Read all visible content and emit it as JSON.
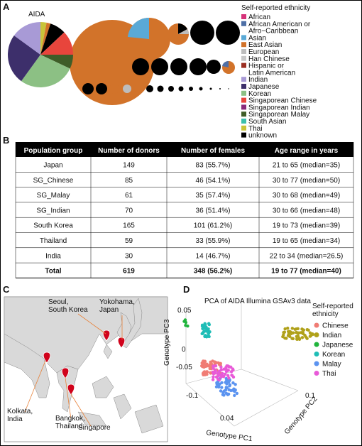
{
  "panels": {
    "a": "A",
    "b": "B",
    "c": "C",
    "d": "D"
  },
  "pie": {
    "label": "AIDA",
    "legend_title": "Self-reported ethnicity",
    "legend": [
      {
        "lines": [
          "African"
        ],
        "color": "#d6337a"
      },
      {
        "lines": [
          "African American or",
          "Afro−Caribbean"
        ],
        "color": "#4e6fa6"
      },
      {
        "lines": [
          "Asian"
        ],
        "color": "#5aa9d6"
      },
      {
        "lines": [
          "East Asian"
        ],
        "color": "#d2732a"
      },
      {
        "lines": [
          "European"
        ],
        "color": "#bdbdbd"
      },
      {
        "lines": [
          "Han Chinese"
        ],
        "color": "#c8c8c8"
      },
      {
        "lines": [
          "Hispanic or",
          "Latin American"
        ],
        "color": "#9b2f22"
      },
      {
        "lines": [
          "Indian"
        ],
        "color": "#a89ad6"
      },
      {
        "lines": [
          "Japanese"
        ],
        "color": "#3d2f6b"
      },
      {
        "lines": [
          "Korean"
        ],
        "color": "#8cc084"
      },
      {
        "lines": [
          "Singaporean Chinese"
        ],
        "color": "#e8453c"
      },
      {
        "lines": [
          "Singaporean Indian"
        ],
        "color": "#8a2b7a"
      },
      {
        "lines": [
          "Singaporean Malay"
        ],
        "color": "#3f5d28"
      },
      {
        "lines": [
          "South Asian"
        ],
        "color": "#3bbfad"
      },
      {
        "lines": [
          "Thai"
        ],
        "color": "#c8c43a"
      },
      {
        "lines": [
          "unknown"
        ],
        "color": "#000000"
      }
    ]
  },
  "table": {
    "header": [
      "Population group",
      "Number of donors",
      "Number of females",
      "Age range in years"
    ],
    "rows": [
      [
        "Japan",
        "149",
        "83 (55.7%)",
        "21 to 65 (median=35)"
      ],
      [
        "SG_Chinese",
        "85",
        "46 (54.1%)",
        "30 to 77 (median=50)"
      ],
      [
        "SG_Malay",
        "61",
        "35 (57.4%)",
        "30 to 68 (median=49)"
      ],
      [
        "SG_Indian",
        "70",
        "36 (51.4%)",
        "30 to 66 (median=48)"
      ],
      [
        "South Korea",
        "165",
        "101 (61.2%)",
        "19 to 73 (median=39)"
      ],
      [
        "Thailand",
        "59",
        "33 (55.9%)",
        "19 to 65 (median=34)"
      ],
      [
        "India",
        "30",
        "14 (46.7%)",
        "22 to 34 (median=26.5)"
      ],
      [
        "Total",
        "619",
        "348 (56.2%)",
        "19 to 77 (median=40)"
      ]
    ]
  },
  "map": {
    "labels": [
      [
        "Seoul,",
        "South Korea"
      ],
      [
        "Yokohama,",
        "Japan"
      ],
      [
        "Kolkata,",
        "India"
      ],
      [
        "Bangkok,",
        "Thailand"
      ],
      [
        "Singapore"
      ]
    ]
  },
  "pca": {
    "title": "PCA of AIDA Illumina GSAv3 data",
    "x_label": "Genotype PC1",
    "y_label": "Genotype PC2",
    "z_label": "Genotype PC3",
    "ticks": [
      "0.05",
      "0",
      "-0.05",
      "-0.1",
      "0.04",
      "0.1"
    ],
    "legend_title": [
      "Self-reported",
      "ethnicity"
    ],
    "legend": [
      {
        "name": "Chinese",
        "color": "#f07c74"
      },
      {
        "name": "Indian",
        "color": "#b0a11a"
      },
      {
        "name": "Japanese",
        "color": "#20b43c"
      },
      {
        "name": "Korean",
        "color": "#1fbdb6"
      },
      {
        "name": "Malay",
        "color": "#5b93f0"
      },
      {
        "name": "Thai",
        "color": "#e85ad8"
      }
    ]
  }
}
